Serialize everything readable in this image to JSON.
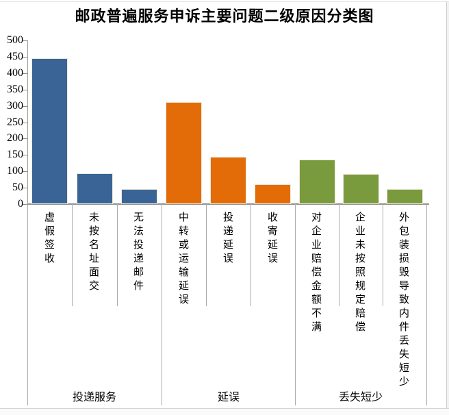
{
  "chart_data": {
    "type": "bar",
    "title": "邮政普遍服务申诉主要问题二级原因分类图",
    "xlabel": "",
    "ylabel": "",
    "ylim": [
      0,
      500
    ],
    "yticks": [
      0,
      50,
      100,
      150,
      200,
      250,
      300,
      350,
      400,
      450,
      500
    ],
    "grid": false,
    "legend": false,
    "groups": [
      {
        "label": "投递服务",
        "color": "#3a6496",
        "categories": [
          "虚假签收",
          "未按名址面交",
          "无法投递邮件"
        ],
        "values": [
          445,
          95,
          47
        ]
      },
      {
        "label": "延误",
        "color": "#e36c09",
        "categories": [
          "中转或运输延误",
          "投递延误",
          "收寄延误"
        ],
        "values": [
          312,
          145,
          60
        ]
      },
      {
        "label": "丢失短少",
        "color": "#7a9a3e",
        "categories": [
          "对企业赔偿金额不满",
          "企业未按照规定赔偿",
          "外包装损毁导致内件丢失短少"
        ],
        "values": [
          136,
          93,
          47
        ]
      }
    ]
  }
}
